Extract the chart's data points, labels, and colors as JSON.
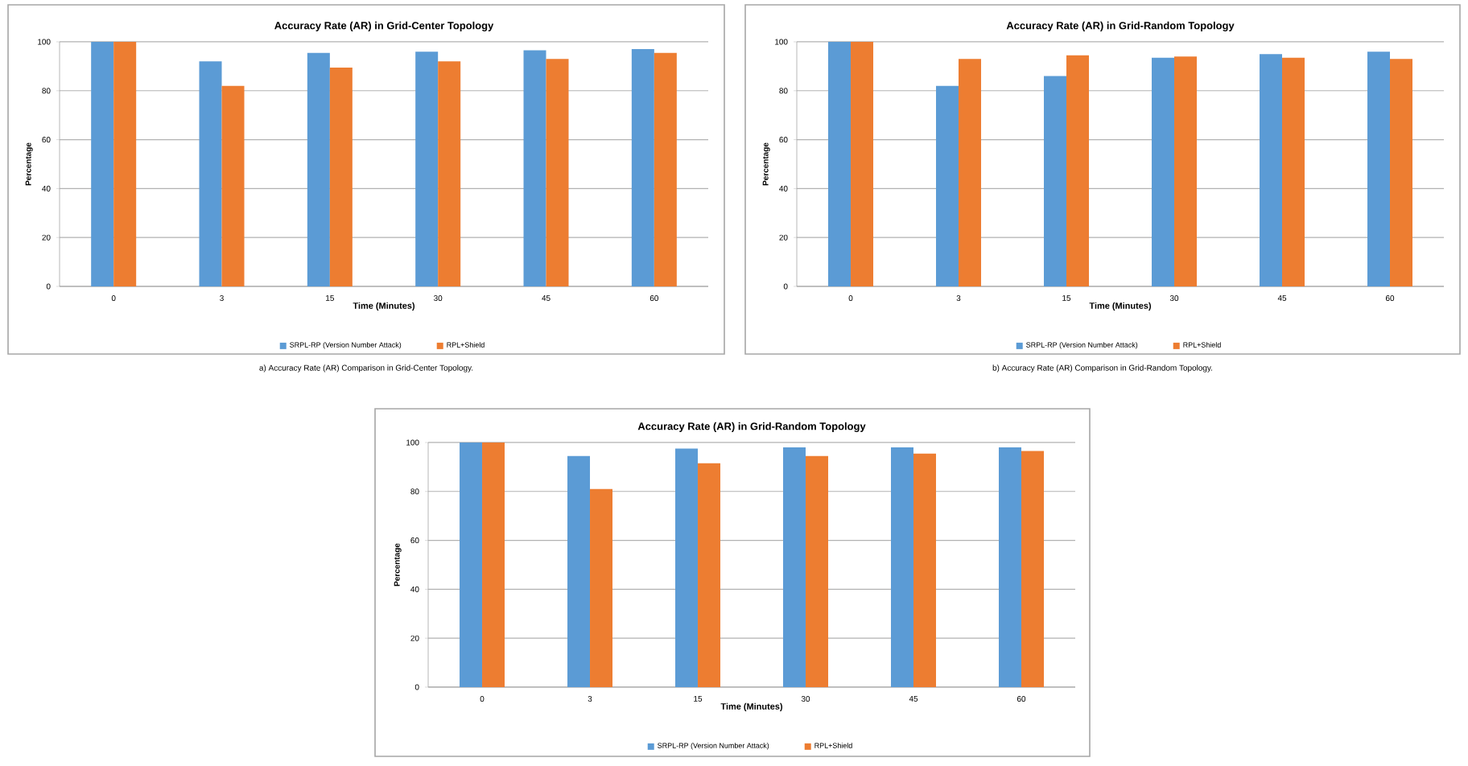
{
  "chart_data": [
    {
      "type": "bar",
      "title": "Accuracy Rate (AR) in Grid-Center Topology",
      "xlabel": "Time (Minutes)",
      "ylabel": "Percentage",
      "categories": [
        "0",
        "3",
        "15",
        "30",
        "45",
        "60"
      ],
      "series": [
        {
          "name": "SRPL-RP (Version Number Attack)",
          "color": "#5b9bd5",
          "values": [
            100,
            92,
            95.5,
            96,
            96.5,
            97
          ]
        },
        {
          "name": "RPL+Shield",
          "color": "#ed7d31",
          "values": [
            100,
            82,
            89.5,
            92,
            93,
            95.5
          ]
        }
      ],
      "ylim": [
        0,
        100
      ],
      "yticks": [
        0,
        20,
        40,
        60,
        80,
        100
      ],
      "grid": "y",
      "legend": "bottom",
      "annotations": [
        "a) Accuracy Rate (AR) Comparison in Grid-Center Topology."
      ]
    },
    {
      "type": "bar",
      "title": "Accuracy Rate (AR) in Grid-Random Topology",
      "xlabel": "Time (Minutes)",
      "ylabel": "Percentage",
      "categories": [
        "0",
        "3",
        "15",
        "30",
        "45",
        "60"
      ],
      "series": [
        {
          "name": "SRPL-RP (Version Number Attack)",
          "color": "#5b9bd5",
          "values": [
            100,
            82,
            86,
            93.5,
            95,
            96
          ]
        },
        {
          "name": "RPL+Shield",
          "color": "#ed7d31",
          "values": [
            100,
            93,
            94.5,
            94,
            93.5,
            93
          ]
        }
      ],
      "ylim": [
        0,
        100
      ],
      "yticks": [
        0,
        20,
        40,
        60,
        80,
        100
      ],
      "grid": "y",
      "legend": "bottom",
      "annotations": [
        "b) Accuracy Rate (AR) Comparison in Grid-Random Topology."
      ]
    },
    {
      "type": "bar",
      "title": "Accuracy Rate (AR) in Grid-Random Topology",
      "xlabel": "Time (Minutes)",
      "ylabel": "Percentage",
      "categories": [
        "0",
        "3",
        "15",
        "30",
        "45",
        "60"
      ],
      "series": [
        {
          "name": "SRPL-RP (Version Number Attack)",
          "color": "#5b9bd5",
          "values": [
            100,
            94.5,
            97.5,
            98,
            98,
            98
          ]
        },
        {
          "name": "RPL+Shield",
          "color": "#ed7d31",
          "values": [
            100,
            81,
            91.5,
            94.5,
            95.5,
            96.5
          ]
        }
      ],
      "ylim": [
        0,
        100
      ],
      "yticks": [
        0,
        20,
        40,
        60,
        80,
        100
      ],
      "grid": "y",
      "legend": "bottom"
    }
  ]
}
